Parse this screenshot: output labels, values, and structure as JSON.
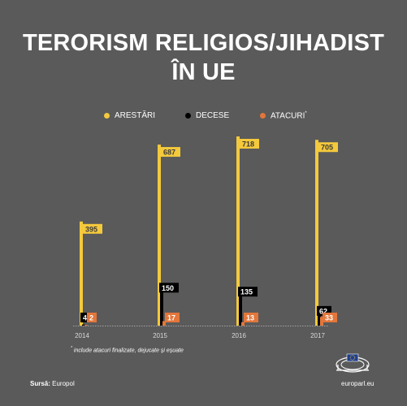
{
  "title_line1": "TERORISM RELIGIOS/JIHADIST",
  "title_line2": "ÎN UE",
  "legend": [
    {
      "label": "ARESTĂRI",
      "color": "#f4c93c",
      "sup": ""
    },
    {
      "label": "DECESE",
      "color": "#000000",
      "sup": ""
    },
    {
      "label": "ATACURI",
      "color": "#e3763a",
      "sup": "*"
    }
  ],
  "footnote_mark": "*",
  "footnote_text": "include atacuri finalizate, dejucate și eșuate",
  "source_label": "Sursă:",
  "source_value": "Europol",
  "brand": "europarl.eu",
  "logo_icon": "european-parliament-logo-icon",
  "chart_data": {
    "type": "bar",
    "categories": [
      "2014",
      "2015",
      "2016",
      "2017"
    ],
    "series": [
      {
        "name": "ARESTĂRI",
        "color": "#f4c93c",
        "values": [
          395,
          687,
          718,
          705
        ]
      },
      {
        "name": "DECESE",
        "color": "#000000",
        "values": [
          4,
          150,
          135,
          62
        ]
      },
      {
        "name": "ATACURI",
        "color": "#e3763a",
        "values": [
          2,
          17,
          13,
          33
        ]
      }
    ],
    "ylim": [
      0,
      718
    ],
    "grid": false,
    "legend_position": "top"
  }
}
